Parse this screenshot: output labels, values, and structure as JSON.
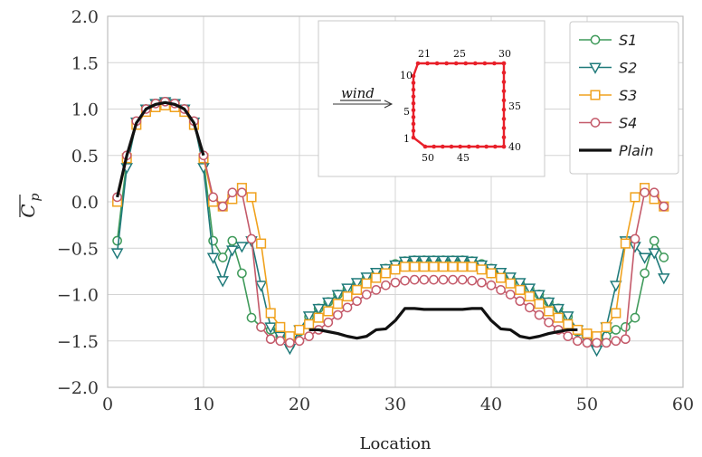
{
  "chart_data": {
    "type": "line",
    "title": "",
    "xlabel": "Location",
    "ylabel": "C_p (mean)",
    "ylabel_symbol": "C",
    "ylabel_subscript": "p",
    "xlim": [
      0,
      60
    ],
    "ylim": [
      -2.0,
      2.0
    ],
    "xticks": [
      "0",
      "10",
      "20",
      "30",
      "40",
      "50",
      "60"
    ],
    "yticks": [
      "2.0",
      "1.5",
      "1.0",
      "0.5",
      "0.0",
      "−0.5",
      "−1.0",
      "−1.5",
      "−2.0"
    ],
    "grid": true,
    "legend_position": "top-right",
    "series": [
      {
        "name": "S1",
        "color": "#3f9a5a",
        "marker": "circle",
        "x": [
          1,
          2,
          3,
          4,
          5,
          6,
          7,
          8,
          9,
          10,
          11,
          12,
          13,
          14,
          15,
          16,
          17,
          18,
          19,
          20,
          21,
          22,
          23,
          24,
          25,
          26,
          27,
          28,
          29,
          30,
          31,
          32,
          33,
          34,
          35,
          36,
          37,
          38,
          39,
          40,
          41,
          42,
          43,
          44,
          45,
          46,
          47,
          48,
          49,
          50,
          51,
          52,
          53,
          54,
          55,
          56,
          57,
          58
        ],
        "y": [
          -0.42,
          0.45,
          0.86,
          1.0,
          1.06,
          1.08,
          1.06,
          1.0,
          0.86,
          0.45,
          -0.42,
          -0.6,
          -0.42,
          -0.77,
          -1.25,
          -1.35,
          -1.38,
          -1.45,
          -1.55,
          -1.4,
          -1.24,
          -1.15,
          -1.08,
          -1.0,
          -0.94,
          -0.88,
          -0.82,
          -0.77,
          -0.72,
          -0.67,
          -0.64,
          -0.63,
          -0.63,
          -0.63,
          -0.63,
          -0.63,
          -0.63,
          -0.64,
          -0.67,
          -0.72,
          -0.77,
          -0.82,
          -0.88,
          -0.94,
          -1.0,
          -1.08,
          -1.15,
          -1.24,
          -1.4,
          -1.45,
          -1.55,
          -1.45,
          -1.38,
          -1.35,
          -1.25,
          -0.77,
          -0.42,
          -0.6
        ]
      },
      {
        "name": "S2",
        "color": "#1f7a7a",
        "marker": "triangle-down",
        "x": [
          1,
          2,
          3,
          4,
          5,
          6,
          7,
          8,
          9,
          10,
          11,
          12,
          13,
          14,
          15,
          16,
          17,
          18,
          19,
          20,
          21,
          22,
          23,
          24,
          25,
          26,
          27,
          28,
          29,
          30,
          31,
          32,
          33,
          34,
          35,
          36,
          37,
          38,
          39,
          40,
          41,
          42,
          43,
          44,
          45,
          46,
          47,
          48,
          49,
          50,
          51,
          52,
          53,
          54,
          55,
          56,
          57,
          58
        ],
        "y": [
          -0.55,
          0.37,
          0.86,
          1.0,
          1.06,
          1.08,
          1.06,
          1.0,
          0.86,
          0.37,
          -0.6,
          -0.85,
          -0.52,
          -0.48,
          -0.42,
          -0.9,
          -1.35,
          -1.45,
          -1.58,
          -1.38,
          -1.23,
          -1.15,
          -1.08,
          -1.0,
          -0.93,
          -0.87,
          -0.81,
          -0.76,
          -0.72,
          -0.68,
          -0.64,
          -0.63,
          -0.63,
          -0.63,
          -0.63,
          -0.63,
          -0.63,
          -0.64,
          -0.68,
          -0.72,
          -0.76,
          -0.81,
          -0.87,
          -0.93,
          -1.0,
          -1.08,
          -1.15,
          -1.23,
          -1.38,
          -1.5,
          -1.6,
          -1.35,
          -0.9,
          -0.42,
          -0.48,
          -0.6,
          -0.55,
          -0.82
        ]
      },
      {
        "name": "S3",
        "color": "#f0a21e",
        "marker": "square",
        "x": [
          1,
          2,
          3,
          4,
          5,
          6,
          7,
          8,
          9,
          10,
          11,
          12,
          13,
          14,
          15,
          16,
          17,
          18,
          19,
          20,
          21,
          22,
          23,
          24,
          25,
          26,
          27,
          28,
          29,
          30,
          31,
          32,
          33,
          34,
          35,
          36,
          37,
          38,
          39,
          40,
          41,
          42,
          43,
          44,
          45,
          46,
          47,
          48,
          49,
          50,
          51,
          52,
          53,
          54,
          55,
          56,
          57,
          58
        ],
        "y": [
          0.0,
          0.47,
          0.83,
          0.97,
          1.02,
          1.04,
          1.02,
          0.97,
          0.83,
          0.47,
          0.0,
          -0.05,
          0.03,
          0.15,
          0.05,
          -0.45,
          -1.2,
          -1.35,
          -1.45,
          -1.38,
          -1.32,
          -1.25,
          -1.18,
          -1.1,
          -1.02,
          -0.95,
          -0.88,
          -0.82,
          -0.77,
          -0.73,
          -0.7,
          -0.7,
          -0.7,
          -0.7,
          -0.7,
          -0.7,
          -0.7,
          -0.7,
          -0.73,
          -0.77,
          -0.82,
          -0.88,
          -0.95,
          -1.02,
          -1.1,
          -1.18,
          -1.25,
          -1.32,
          -1.38,
          -1.42,
          -1.45,
          -1.35,
          -1.2,
          -0.45,
          0.05,
          0.15,
          0.03,
          -0.05
        ]
      },
      {
        "name": "S4",
        "color": "#c45a6a",
        "marker": "circle",
        "x": [
          1,
          2,
          3,
          4,
          5,
          6,
          7,
          8,
          9,
          10,
          11,
          12,
          13,
          14,
          15,
          16,
          17,
          18,
          19,
          20,
          21,
          22,
          23,
          24,
          25,
          26,
          27,
          28,
          29,
          30,
          31,
          32,
          33,
          34,
          35,
          36,
          37,
          38,
          39,
          40,
          41,
          42,
          43,
          44,
          45,
          46,
          47,
          48,
          49,
          50,
          51,
          52,
          53,
          54,
          55,
          56,
          57,
          58
        ],
        "y": [
          0.05,
          0.5,
          0.87,
          1.0,
          1.06,
          1.08,
          1.06,
          1.0,
          0.87,
          0.5,
          0.05,
          -0.05,
          0.1,
          0.1,
          -0.4,
          -1.35,
          -1.48,
          -1.5,
          -1.52,
          -1.5,
          -1.45,
          -1.38,
          -1.3,
          -1.22,
          -1.14,
          -1.07,
          -1.0,
          -0.95,
          -0.9,
          -0.87,
          -0.85,
          -0.84,
          -0.84,
          -0.84,
          -0.84,
          -0.84,
          -0.84,
          -0.85,
          -0.87,
          -0.9,
          -0.95,
          -1.0,
          -1.07,
          -1.14,
          -1.22,
          -1.3,
          -1.38,
          -1.45,
          -1.5,
          -1.52,
          -1.52,
          -1.52,
          -1.5,
          -1.48,
          -0.4,
          0.1,
          0.1,
          -0.05
        ]
      },
      {
        "name": "Plain",
        "color": "#111111",
        "marker": "none",
        "x": [
          1,
          2,
          3,
          4,
          5,
          6,
          7,
          8,
          9,
          10,
          21,
          22,
          23,
          24,
          25,
          26,
          27,
          28,
          29,
          30,
          31,
          32,
          33,
          34,
          35,
          36,
          37,
          38,
          39,
          40,
          41,
          42,
          43,
          44,
          45,
          46,
          47,
          48,
          49
        ],
        "y": [
          0.05,
          0.5,
          0.85,
          1.0,
          1.05,
          1.07,
          1.05,
          1.0,
          0.85,
          0.5,
          -1.38,
          -1.38,
          -1.4,
          -1.42,
          -1.45,
          -1.47,
          -1.45,
          -1.38,
          -1.37,
          -1.28,
          -1.15,
          -1.15,
          -1.16,
          -1.16,
          -1.16,
          -1.16,
          -1.16,
          -1.15,
          -1.15,
          -1.28,
          -1.37,
          -1.38,
          -1.45,
          -1.47,
          -1.45,
          -1.42,
          -1.4,
          -1.38,
          -1.38
        ]
      }
    ]
  },
  "inset": {
    "wind_label": "wind",
    "point_labels": [
      "21",
      "25",
      "30",
      "10",
      "35",
      "5",
      "1",
      "50",
      "45",
      "40"
    ],
    "color": "#e8202a"
  }
}
